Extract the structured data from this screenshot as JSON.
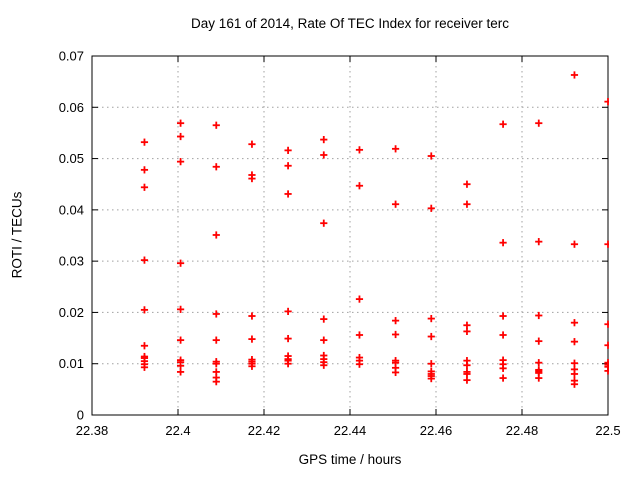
{
  "chart_data": {
    "type": "scatter",
    "title": "Day 161 of 2014, Rate Of TEC Index for receiver terc",
    "xlabel": "GPS time / hours",
    "ylabel": "ROTI / TECUs",
    "xlim": [
      22.38,
      22.5
    ],
    "ylim": [
      0,
      0.07
    ],
    "x_ticks": [
      22.38,
      22.4,
      22.42,
      22.44,
      22.46,
      22.48,
      22.5
    ],
    "x_tick_labels": [
      "22.38",
      "22.4",
      "22.42",
      "22.44",
      "22.46",
      "22.48",
      "22.5"
    ],
    "y_ticks": [
      0,
      0.01,
      0.02,
      0.03,
      0.04,
      0.05,
      0.06,
      0.07
    ],
    "y_tick_labels": [
      "0",
      "0.01",
      "0.02",
      "0.03",
      "0.04",
      "0.05",
      "0.06",
      "0.07"
    ],
    "grid": true,
    "grid_color": "#a0a0a0",
    "axis_color": "#000000",
    "marker": "plus",
    "marker_color": "#ff0000",
    "legend": "none",
    "series": [
      {
        "name": "ROTI",
        "points": [
          [
            22.3922,
            0.0532
          ],
          [
            22.3922,
            0.0478
          ],
          [
            22.3922,
            0.0444
          ],
          [
            22.3922,
            0.0302
          ],
          [
            22.3922,
            0.0205
          ],
          [
            22.3922,
            0.0135
          ],
          [
            22.3922,
            0.0114
          ],
          [
            22.3922,
            0.0111
          ],
          [
            22.3922,
            0.0105
          ],
          [
            22.3922,
            0.0099
          ],
          [
            22.3922,
            0.0093
          ],
          [
            22.4006,
            0.0569
          ],
          [
            22.4006,
            0.0543
          ],
          [
            22.4006,
            0.0494
          ],
          [
            22.4006,
            0.0296
          ],
          [
            22.4006,
            0.0206
          ],
          [
            22.4006,
            0.0146
          ],
          [
            22.4006,
            0.0107
          ],
          [
            22.4006,
            0.0103
          ],
          [
            22.4006,
            0.0096
          ],
          [
            22.4006,
            0.0084
          ],
          [
            22.4089,
            0.0565
          ],
          [
            22.4089,
            0.0484
          ],
          [
            22.4089,
            0.0351
          ],
          [
            22.4089,
            0.0197
          ],
          [
            22.4089,
            0.0146
          ],
          [
            22.4089,
            0.0104
          ],
          [
            22.4089,
            0.01
          ],
          [
            22.4089,
            0.0084
          ],
          [
            22.4089,
            0.0073
          ],
          [
            22.4089,
            0.0065
          ],
          [
            22.4172,
            0.0528
          ],
          [
            22.4172,
            0.0468
          ],
          [
            22.4172,
            0.0461
          ],
          [
            22.4172,
            0.0193
          ],
          [
            22.4172,
            0.0148
          ],
          [
            22.4172,
            0.0108
          ],
          [
            22.4172,
            0.0104
          ],
          [
            22.4172,
            0.01
          ],
          [
            22.4172,
            0.0095
          ],
          [
            22.4256,
            0.0516
          ],
          [
            22.4256,
            0.0486
          ],
          [
            22.4256,
            0.0431
          ],
          [
            22.4256,
            0.0202
          ],
          [
            22.4256,
            0.0149
          ],
          [
            22.4256,
            0.0115
          ],
          [
            22.4256,
            0.0109
          ],
          [
            22.4256,
            0.0106
          ],
          [
            22.4256,
            0.01
          ],
          [
            22.4339,
            0.0537
          ],
          [
            22.4339,
            0.0507
          ],
          [
            22.4339,
            0.0374
          ],
          [
            22.4339,
            0.0187
          ],
          [
            22.4339,
            0.0146
          ],
          [
            22.4339,
            0.0116
          ],
          [
            22.4339,
            0.0109
          ],
          [
            22.4339,
            0.0103
          ],
          [
            22.4339,
            0.0097
          ],
          [
            22.4422,
            0.0517
          ],
          [
            22.4422,
            0.0447
          ],
          [
            22.4422,
            0.0226
          ],
          [
            22.4422,
            0.0156
          ],
          [
            22.4422,
            0.0112
          ],
          [
            22.4422,
            0.0106
          ],
          [
            22.4422,
            0.0099
          ],
          [
            22.4506,
            0.0519
          ],
          [
            22.4506,
            0.0411
          ],
          [
            22.4506,
            0.0184
          ],
          [
            22.4506,
            0.0157
          ],
          [
            22.4506,
            0.0106
          ],
          [
            22.4506,
            0.0102
          ],
          [
            22.4506,
            0.0092
          ],
          [
            22.4506,
            0.0083
          ],
          [
            22.4589,
            0.0505
          ],
          [
            22.4589,
            0.0403
          ],
          [
            22.4589,
            0.0188
          ],
          [
            22.4589,
            0.0153
          ],
          [
            22.4589,
            0.01
          ],
          [
            22.4589,
            0.0085
          ],
          [
            22.4589,
            0.008
          ],
          [
            22.4589,
            0.0076
          ],
          [
            22.4589,
            0.0071
          ],
          [
            22.4672,
            0.045
          ],
          [
            22.4672,
            0.0411
          ],
          [
            22.4672,
            0.0175
          ],
          [
            22.4672,
            0.0163
          ],
          [
            22.4672,
            0.0106
          ],
          [
            22.4672,
            0.0097
          ],
          [
            22.4672,
            0.0084
          ],
          [
            22.4672,
            0.008
          ],
          [
            22.4672,
            0.0068
          ],
          [
            22.4756,
            0.0567
          ],
          [
            22.4756,
            0.0336
          ],
          [
            22.4756,
            0.0193
          ],
          [
            22.4756,
            0.0156
          ],
          [
            22.4756,
            0.0107
          ],
          [
            22.4756,
            0.0099
          ],
          [
            22.4756,
            0.0091
          ],
          [
            22.4756,
            0.0072
          ],
          [
            22.4839,
            0.0569
          ],
          [
            22.4839,
            0.0338
          ],
          [
            22.4839,
            0.0194
          ],
          [
            22.4839,
            0.0144
          ],
          [
            22.4839,
            0.0102
          ],
          [
            22.4839,
            0.0088
          ],
          [
            22.4839,
            0.0085
          ],
          [
            22.4839,
            0.0082
          ],
          [
            22.4839,
            0.0072
          ],
          [
            22.4922,
            0.0663
          ],
          [
            22.4922,
            0.0333
          ],
          [
            22.4922,
            0.018
          ],
          [
            22.4922,
            0.0143
          ],
          [
            22.4922,
            0.0101
          ],
          [
            22.4922,
            0.0089
          ],
          [
            22.4922,
            0.008
          ],
          [
            22.4922,
            0.0067
          ],
          [
            22.4922,
            0.006
          ],
          [
            22.5,
            0.0611
          ],
          [
            22.5,
            0.0333
          ],
          [
            22.5,
            0.0177
          ],
          [
            22.5,
            0.0136
          ],
          [
            22.5,
            0.0102
          ],
          [
            22.5,
            0.0098
          ],
          [
            22.5,
            0.0094
          ],
          [
            22.5,
            0.0086
          ]
        ]
      }
    ]
  }
}
